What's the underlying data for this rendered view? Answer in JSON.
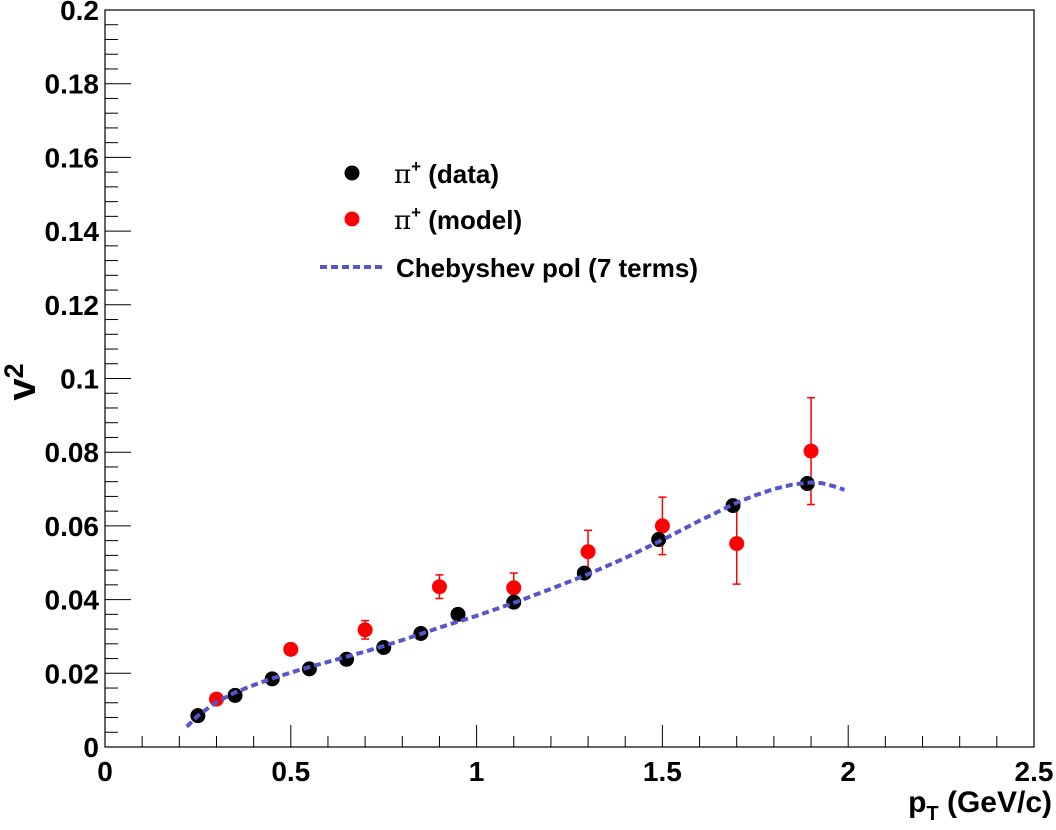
{
  "chart_data": {
    "type": "scatter",
    "title": "",
    "xlabel": "p",
    "xlabel_sub": "T",
    "xlabel_unit": "(GeV/c)",
    "ylabel": "v",
    "ylabel_sub": "2",
    "xlim": [
      0,
      2.5
    ],
    "ylim": [
      0,
      0.2
    ],
    "x_ticks": [
      {
        "value": 0,
        "label": "0"
      },
      {
        "value": 0.5,
        "label": "0.5"
      },
      {
        "value": 1,
        "label": "1"
      },
      {
        "value": 1.5,
        "label": "1.5"
      },
      {
        "value": 2,
        "label": "2"
      },
      {
        "value": 2.5,
        "label": "2.5"
      }
    ],
    "y_ticks": [
      {
        "value": 0,
        "label": "0"
      },
      {
        "value": 0.02,
        "label": "0.02"
      },
      {
        "value": 0.04,
        "label": "0.04"
      },
      {
        "value": 0.06,
        "label": "0.06"
      },
      {
        "value": 0.08,
        "label": "0.08"
      },
      {
        "value": 0.1,
        "label": "0.1"
      },
      {
        "value": 0.12,
        "label": "0.12"
      },
      {
        "value": 0.14,
        "label": "0.14"
      },
      {
        "value": 0.16,
        "label": "0.16"
      },
      {
        "value": 0.18,
        "label": "0.18"
      },
      {
        "value": 0.2,
        "label": "0.2"
      }
    ],
    "legend_position": "upper-left-center",
    "series": [
      {
        "name": "π⁺ (data)",
        "legend_symbol": "π",
        "legend_sup": "+",
        "legend_text": " (data)",
        "kind": "points",
        "color": "#000000",
        "points": [
          {
            "x": 0.25,
            "y": 0.0085,
            "err": 0.0005
          },
          {
            "x": 0.35,
            "y": 0.014,
            "err": 0.0005
          },
          {
            "x": 0.45,
            "y": 0.0185,
            "err": 0.0005
          },
          {
            "x": 0.55,
            "y": 0.0212,
            "err": 0.0005
          },
          {
            "x": 0.65,
            "y": 0.0238,
            "err": 0.0005
          },
          {
            "x": 0.75,
            "y": 0.027,
            "err": 0.0005
          },
          {
            "x": 0.85,
            "y": 0.0308,
            "err": 0.0005
          },
          {
            "x": 0.95,
            "y": 0.036,
            "err": 0.0006
          },
          {
            "x": 1.1,
            "y": 0.0393,
            "err": 0.0007
          },
          {
            "x": 1.29,
            "y": 0.0472,
            "err": 0.0009
          },
          {
            "x": 1.49,
            "y": 0.0563,
            "err": 0.0012
          },
          {
            "x": 1.69,
            "y": 0.0655,
            "err": 0.0016
          },
          {
            "x": 1.89,
            "y": 0.0715,
            "err": 0.002
          }
        ]
      },
      {
        "name": "π⁺ (model)",
        "legend_symbol": "π",
        "legend_sup": "+",
        "legend_text": " (model)",
        "kind": "points",
        "color": "#ff0000",
        "points": [
          {
            "x": 0.3,
            "y": 0.013,
            "err": 0.0008
          },
          {
            "x": 0.5,
            "y": 0.0265,
            "err": 0.0012
          },
          {
            "x": 0.7,
            "y": 0.0318,
            "err": 0.0025
          },
          {
            "x": 0.9,
            "y": 0.0435,
            "err": 0.0032
          },
          {
            "x": 1.1,
            "y": 0.0432,
            "err": 0.004
          },
          {
            "x": 1.3,
            "y": 0.053,
            "err": 0.0058
          },
          {
            "x": 1.5,
            "y": 0.06,
            "err": 0.0078
          },
          {
            "x": 1.7,
            "y": 0.0552,
            "err": 0.011
          },
          {
            "x": 1.9,
            "y": 0.0803,
            "err": 0.0145
          }
        ]
      },
      {
        "name": "Chebyshev pol (7 terms)",
        "legend_text": "Chebyshev pol (7 terms)",
        "kind": "line",
        "style": "dashed",
        "color": "#5555cc",
        "x": [
          0.22,
          0.25,
          0.3,
          0.35,
          0.4,
          0.45,
          0.5,
          0.55,
          0.6,
          0.65,
          0.7,
          0.75,
          0.8,
          0.85,
          0.9,
          0.95,
          1.0,
          1.1,
          1.2,
          1.3,
          1.4,
          1.5,
          1.6,
          1.7,
          1.75,
          1.8,
          1.85,
          1.9,
          1.93,
          1.96,
          1.99
        ],
        "y": [
          0.0055,
          0.0085,
          0.0122,
          0.0148,
          0.0168,
          0.0186,
          0.0202,
          0.0217,
          0.0231,
          0.0245,
          0.0259,
          0.0274,
          0.029,
          0.0307,
          0.0324,
          0.034,
          0.0356,
          0.0391,
          0.0429,
          0.0469,
          0.0513,
          0.0562,
          0.0614,
          0.0663,
          0.0683,
          0.07,
          0.0712,
          0.0718,
          0.0716,
          0.0708,
          0.0698
        ]
      }
    ]
  }
}
